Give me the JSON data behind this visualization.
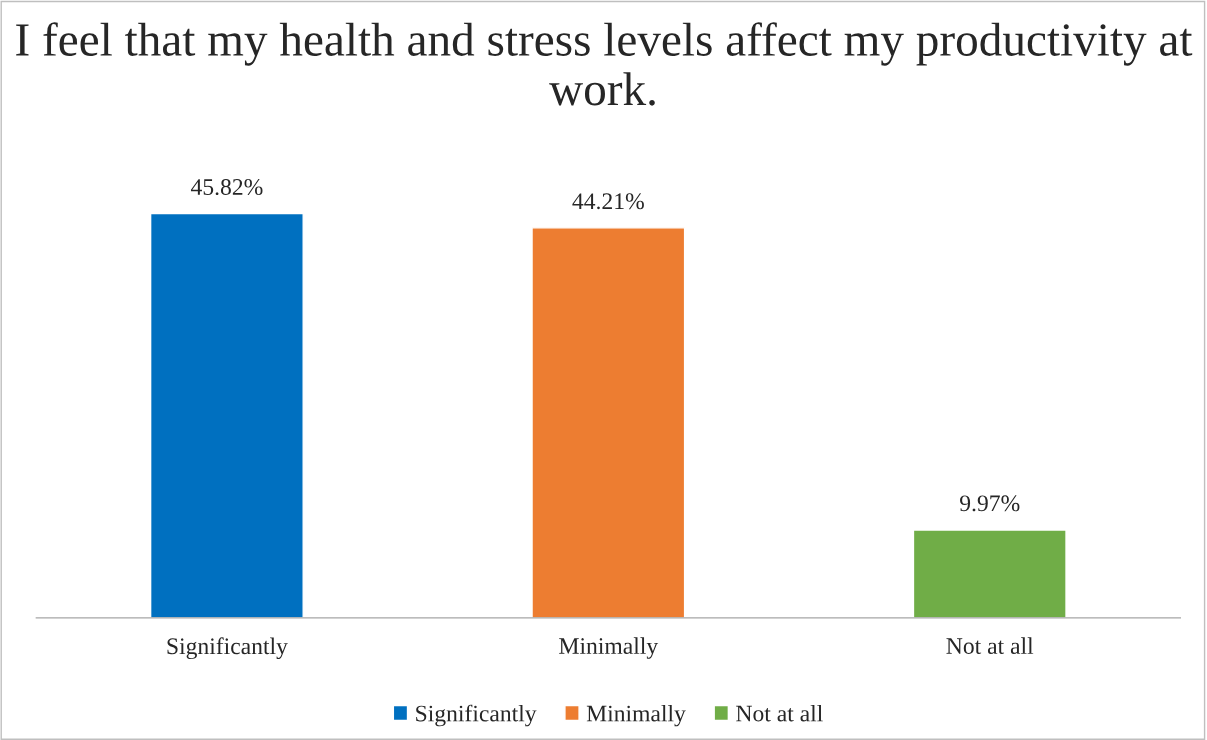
{
  "chart_data": {
    "type": "bar",
    "title": "I feel that my health and stress levels affect my productivity at work.",
    "categories": [
      "Significantly",
      "Minimally",
      "Not at all"
    ],
    "series": [
      {
        "name": "Significantly",
        "color": "#0070c0",
        "values": [
          45.82,
          null,
          null
        ],
        "value_labels": [
          "45.82%",
          null,
          null
        ]
      },
      {
        "name": "Minimally",
        "color": "#ed7d31",
        "values": [
          null,
          44.21,
          null
        ],
        "value_labels": [
          null,
          "44.21%",
          null
        ]
      },
      {
        "name": "Not at all",
        "color": "#70ad47",
        "values": [
          null,
          null,
          9.97
        ],
        "value_labels": [
          null,
          null,
          "9.97%"
        ]
      }
    ],
    "legend": "bottom",
    "grid": false
  }
}
